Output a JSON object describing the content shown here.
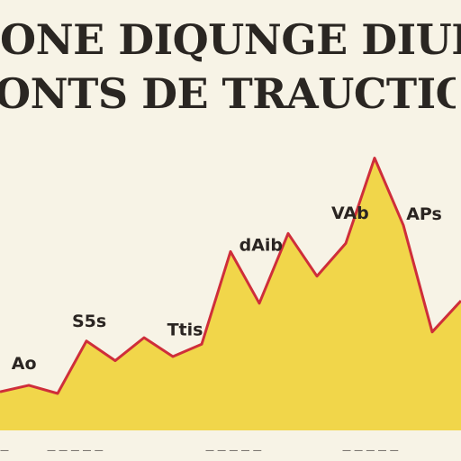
{
  "chart_data": {
    "type": "area",
    "title_lines": [
      "ONE DIQUNGE DIUKTON",
      "ONTS DE TRAUCTION"
    ],
    "x": [
      0,
      1,
      2,
      3,
      4,
      5,
      6,
      7,
      8,
      9,
      10,
      11,
      12,
      13,
      14,
      15,
      16
    ],
    "values": [
      47,
      55,
      45,
      109,
      85,
      113,
      90,
      105,
      218,
      155,
      240,
      188,
      228,
      332,
      250,
      120,
      158
    ],
    "ylim": [
      0,
      360
    ],
    "annotations": [
      {
        "text": "Ao",
        "x": 0.4
      },
      {
        "text": "S5s",
        "x": 2.5
      },
      {
        "text": "Ttis",
        "x": 5.8
      },
      {
        "text": "dAib",
        "x": 8.3
      },
      {
        "text": "VAb",
        "x": 11.5
      },
      {
        "text": "APs",
        "x": 14.1
      }
    ],
    "tick_labels": [
      "—",
      "— — — — —",
      "— — — — —",
      "— — — — —"
    ],
    "colors": {
      "fill": "#f1d64a",
      "line": "#cf2e3a",
      "background": "#f7f3e6"
    },
    "grid": false,
    "legend": "none"
  }
}
